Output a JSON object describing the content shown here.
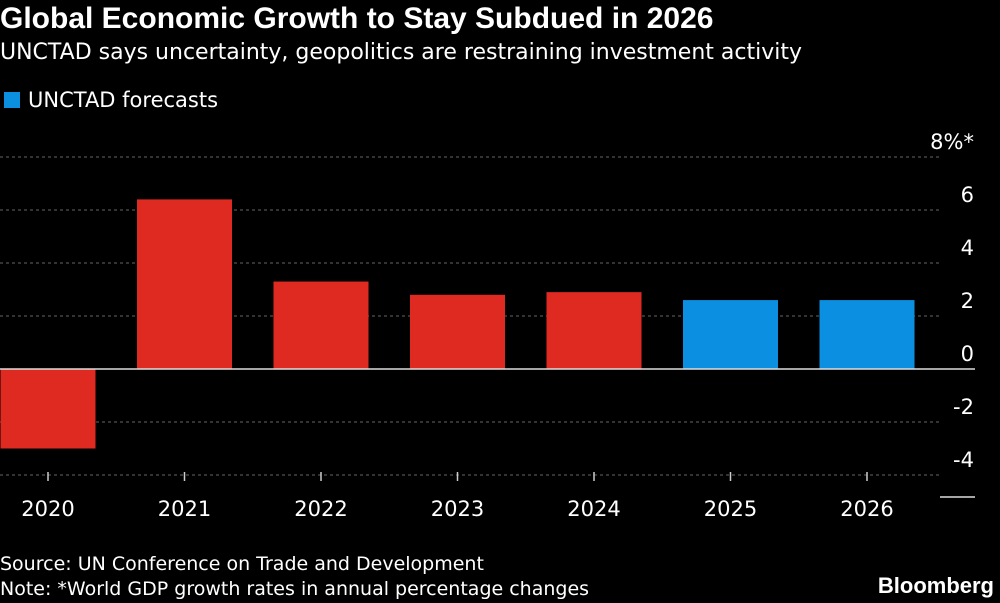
{
  "header": {
    "title": "Global Economic Growth to Stay Subdued in 2026",
    "subtitle": "UNCTAD says uncertainty, geopolitics are restraining investment activity"
  },
  "legend": {
    "label": "UNCTAD forecasts",
    "color": "#0b8fe0"
  },
  "colors": {
    "actual": "#df2a22",
    "forecast": "#0b8fe0"
  },
  "chart_data": {
    "type": "bar",
    "categories": [
      "2020",
      "2021",
      "2022",
      "2023",
      "2024",
      "2025",
      "2026"
    ],
    "values": [
      -3.0,
      6.4,
      3.3,
      2.8,
      2.9,
      2.6,
      2.6
    ],
    "forecast": [
      false,
      false,
      false,
      false,
      false,
      true,
      true
    ],
    "ylim": [
      -4,
      8
    ],
    "yticks": [
      -4,
      -2,
      0,
      2,
      4,
      6,
      8
    ],
    "ytick_labels": [
      "-4",
      "-2",
      "0",
      "2",
      "4",
      "6",
      "8%*"
    ],
    "grid": true,
    "legend_position": "top-left"
  },
  "footer": {
    "source": "Source: UN Conference on Trade and Development",
    "note": "Note: *World GDP growth rates in annual percentage changes",
    "brand": "Bloomberg"
  }
}
